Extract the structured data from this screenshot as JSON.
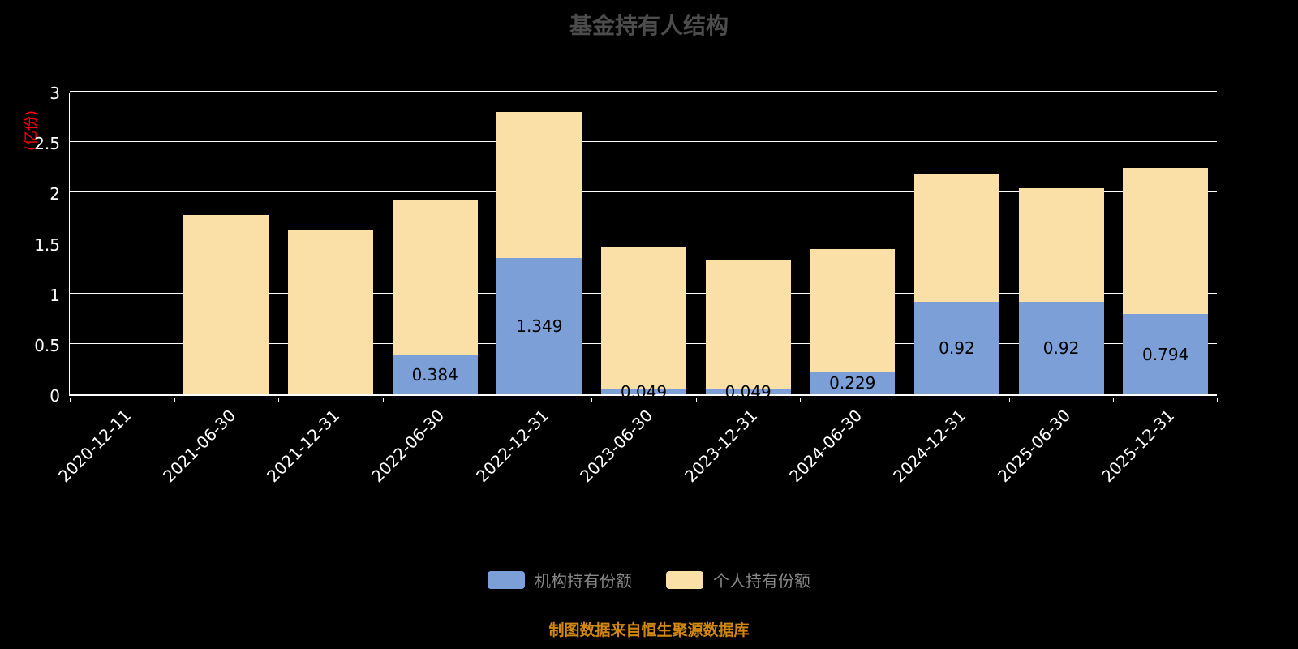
{
  "title": "基金持有人结构",
  "footer": "制图数据来自恒生聚源数据库",
  "colors": {
    "background": "#000000",
    "institutional": "#7b9fd6",
    "individual": "#fadfa6",
    "axis": "#ffffff",
    "tick_text": "#ffffff",
    "title_text": "#4c4c4c",
    "legend_text": "#888888",
    "y_unit_text": "#ff0000",
    "footer_text": "#d2880e",
    "value_label_text": "#000000"
  },
  "chart_data": {
    "type": "bar",
    "stacked": true,
    "title": "基金持有人结构",
    "ylabel": "(亿份)",
    "xlabel": "",
    "ylim": [
      0,
      3
    ],
    "ytick_step": 0.5,
    "ytick_labels": [
      "0",
      "0.5",
      "1",
      "1.5",
      "2",
      "2.5",
      "3"
    ],
    "grid": true,
    "legend_position": "bottom",
    "categories": [
      "2020-12-11",
      "2021-06-30",
      "2021-12-31",
      "2022-06-30",
      "2022-12-31",
      "2023-06-30",
      "2023-12-31",
      "2024-06-30",
      "2024-12-31",
      "2025-06-30",
      "2025-12-31"
    ],
    "series": [
      {
        "name": "机构持有份额",
        "color": "#7b9fd6",
        "values": [
          0,
          0,
          0,
          0.384,
          1.349,
          0.049,
          0.049,
          0.229,
          0.92,
          0.92,
          0.794
        ],
        "labels": [
          "",
          "",
          "",
          "0.384",
          "1.349",
          "0.049",
          "0.049",
          "0.229",
          "0.92",
          "0.92",
          "0.794"
        ]
      },
      {
        "name": "个人持有份额",
        "color": "#fadfa6",
        "values": [
          0,
          1.78,
          1.63,
          1.54,
          1.45,
          1.41,
          1.29,
          1.21,
          1.27,
          1.12,
          1.45
        ],
        "labels": [
          "",
          "",
          "",
          "",
          "",
          "",
          "",
          "",
          "",
          "",
          ""
        ]
      }
    ]
  }
}
